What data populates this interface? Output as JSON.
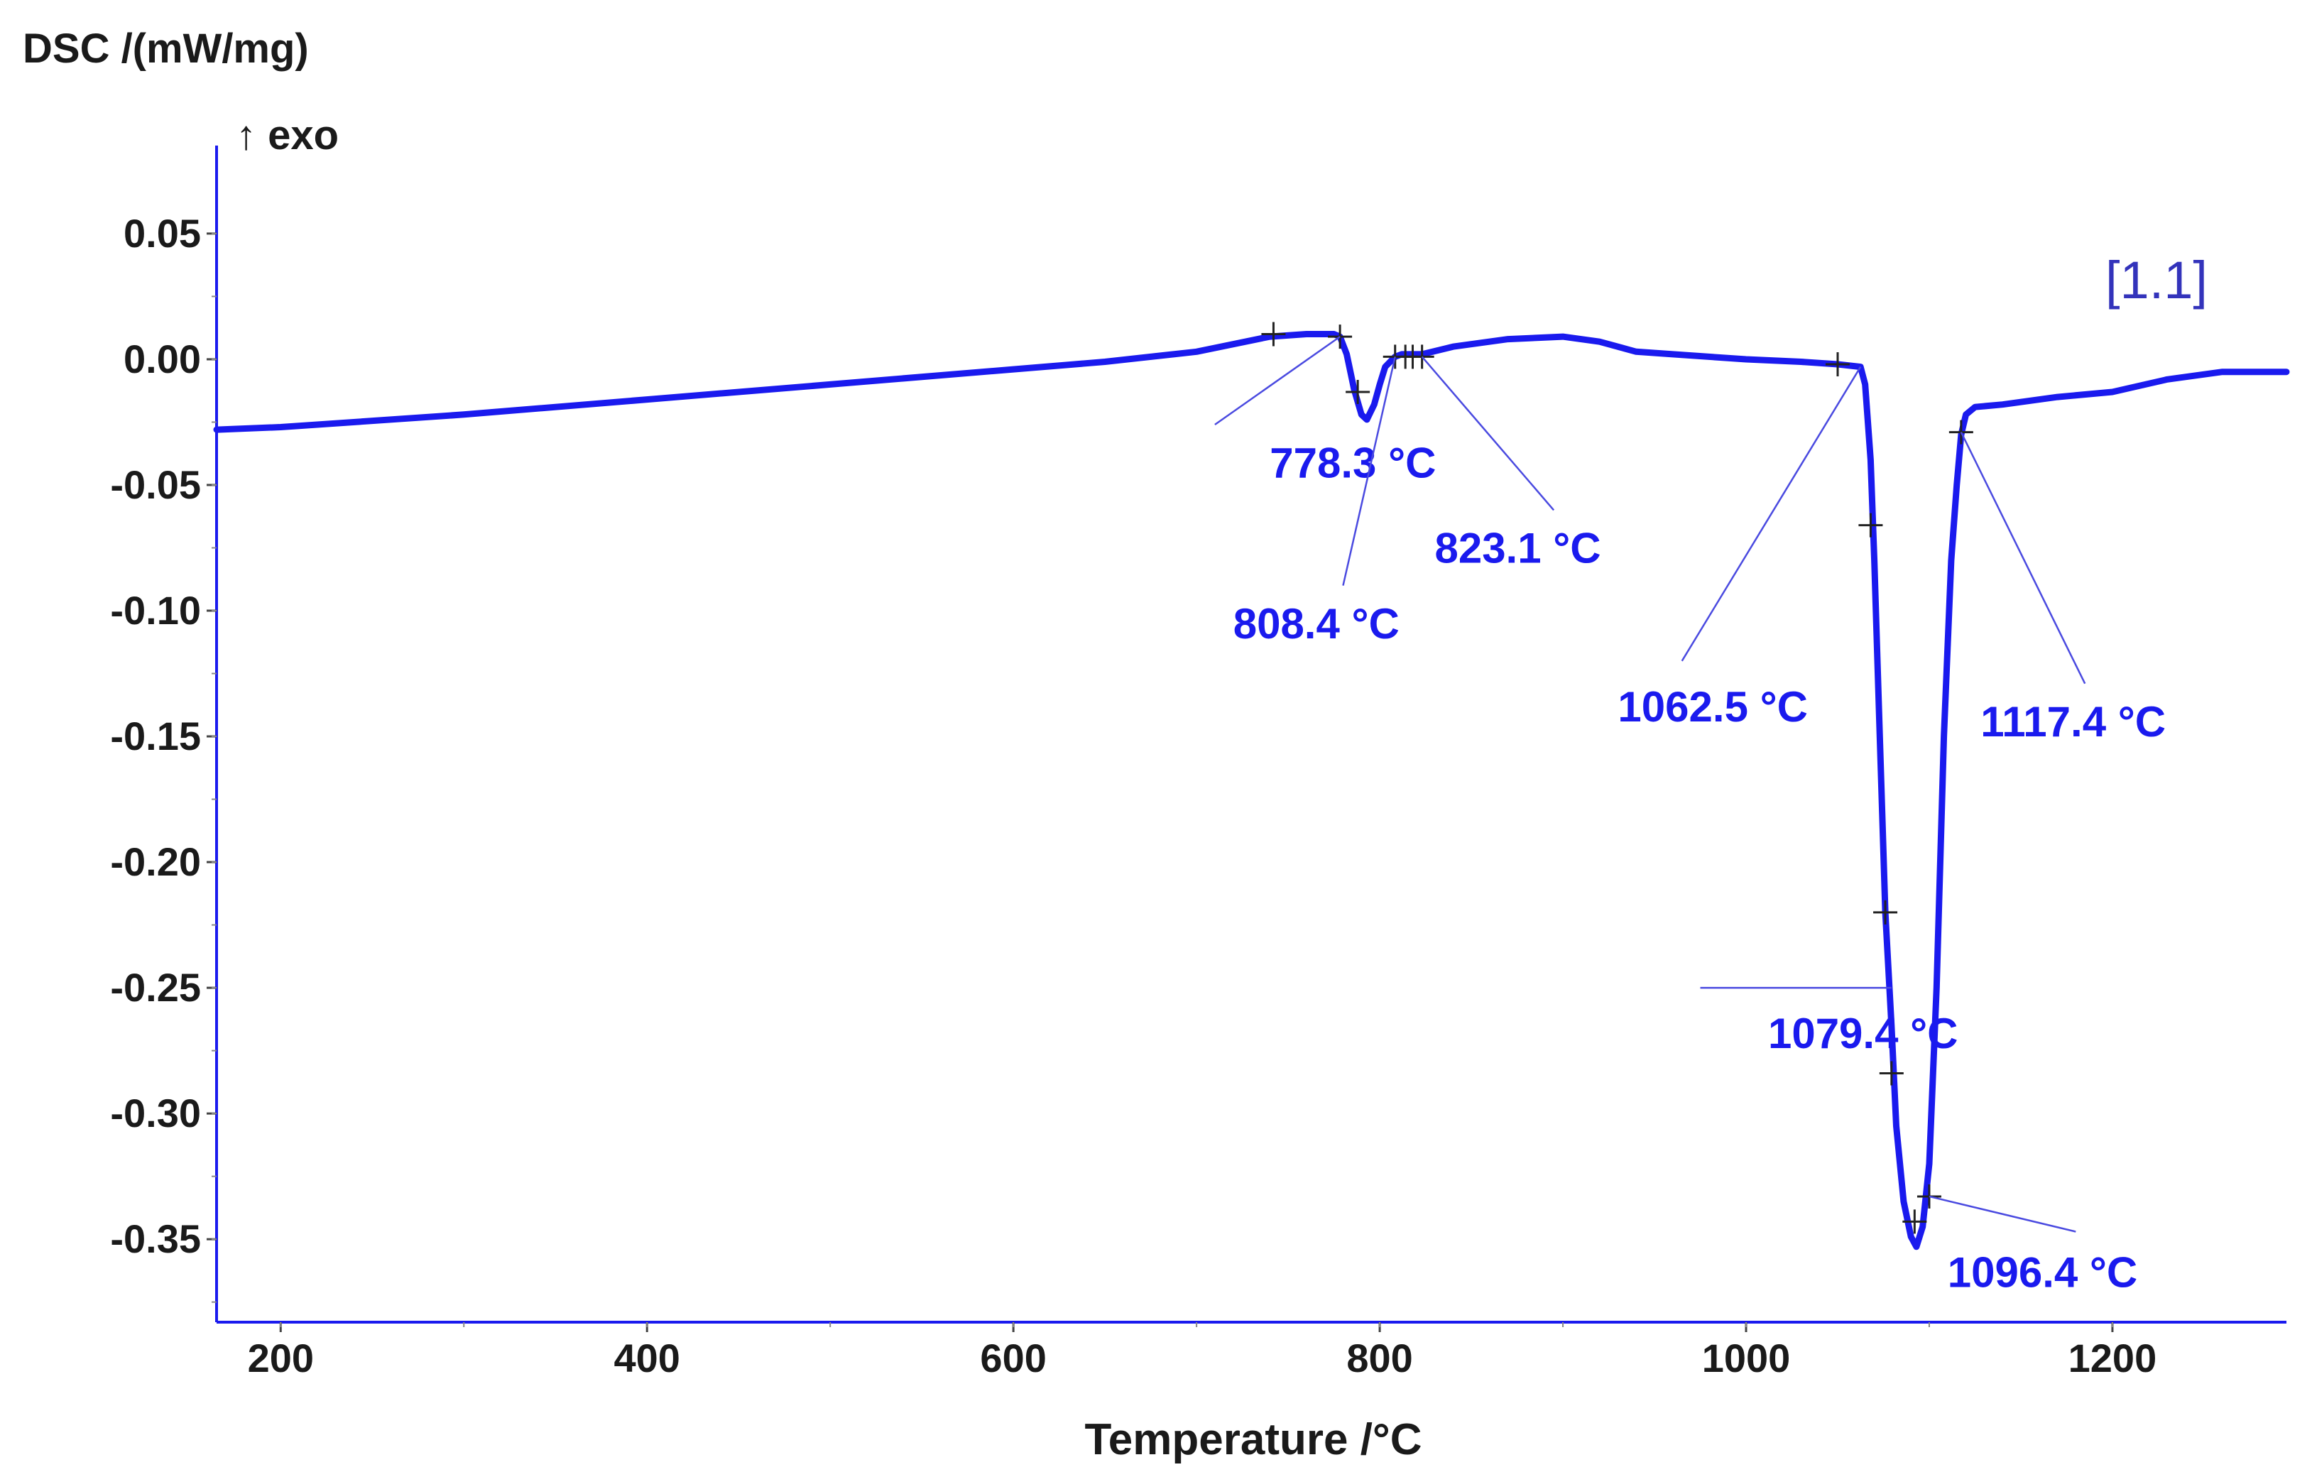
{
  "chart_data": {
    "type": "line",
    "ylabel": "DSC /(mW/mg)",
    "y_direction_label": "↑ exo",
    "xlabel": "Temperature /°C",
    "tag": "[1.1]",
    "xlim": [
      165,
      1295
    ],
    "ylim": [
      -0.383,
      0.085
    ],
    "x_ticks": [
      200,
      400,
      600,
      800,
      1000,
      1200
    ],
    "x_tick_labels": [
      "200",
      "400",
      "600",
      "800",
      "1000",
      "1200"
    ],
    "y_ticks": [
      0.05,
      0.0,
      -0.05,
      -0.1,
      -0.15,
      -0.2,
      -0.25,
      -0.3,
      -0.35
    ],
    "y_tick_labels": [
      "0.05",
      "0.00",
      "-0.05",
      "-0.10",
      "-0.15",
      "-0.20",
      "-0.25",
      "-0.30",
      "-0.35"
    ],
    "grid": false,
    "line_color": "#1a1aee",
    "series": [
      {
        "x": [
          165,
          200,
          300,
          400,
          500,
          600,
          650,
          700,
          740,
          760,
          775,
          778.3,
          782,
          786,
          790,
          793,
          797,
          800,
          803,
          808.4,
          812,
          818,
          823.1,
          840,
          870,
          900,
          920,
          940,
          960,
          1000,
          1030,
          1050,
          1062.5,
          1065,
          1068,
          1070,
          1073,
          1076,
          1079.4,
          1082,
          1086,
          1090,
          1093,
          1096.4,
          1100,
          1104,
          1108,
          1112,
          1115,
          1117.4,
          1120,
          1125,
          1140,
          1170,
          1200,
          1230,
          1260,
          1295
        ],
        "y": [
          -0.028,
          -0.027,
          -0.022,
          -0.016,
          -0.01,
          -0.004,
          -0.001,
          0.003,
          0.009,
          0.01,
          0.01,
          0.009,
          0.002,
          -0.012,
          -0.022,
          -0.024,
          -0.018,
          -0.01,
          -0.003,
          0.001,
          0.002,
          0.002,
          0.002,
          0.005,
          0.008,
          0.009,
          0.007,
          0.003,
          0.002,
          0.0,
          -0.001,
          -0.002,
          -0.003,
          -0.01,
          -0.04,
          -0.08,
          -0.15,
          -0.22,
          -0.265,
          -0.305,
          -0.335,
          -0.349,
          -0.353,
          -0.345,
          -0.32,
          -0.25,
          -0.15,
          -0.08,
          -0.05,
          -0.03,
          -0.022,
          -0.019,
          -0.018,
          -0.015,
          -0.013,
          -0.008,
          -0.005,
          -0.005
        ]
      }
    ],
    "markers": [
      {
        "x": 742,
        "y": 0.01
      },
      {
        "x": 778.3,
        "y": 0.009
      },
      {
        "x": 788,
        "y": -0.013
      },
      {
        "x": 808.4,
        "y": 0.001
      },
      {
        "x": 814,
        "y": 0.001
      },
      {
        "x": 818,
        "y": 0.001
      },
      {
        "x": 823.1,
        "y": 0.001
      },
      {
        "x": 1050,
        "y": -0.002
      },
      {
        "x": 1068,
        "y": -0.066
      },
      {
        "x": 1076,
        "y": -0.22
      },
      {
        "x": 1079.4,
        "y": -0.284
      },
      {
        "x": 1092,
        "y": -0.343
      },
      {
        "x": 1100,
        "y": -0.333
      },
      {
        "x": 1117.4,
        "y": -0.029
      }
    ],
    "annotations": [
      {
        "label": "778.3 °C",
        "point": [
          778.3,
          0.009
        ],
        "anchor": [
          710,
          -0.026
        ],
        "text_at": [
          740,
          -0.047
        ]
      },
      {
        "label": "808.4 °C",
        "point": [
          808.4,
          0.001
        ],
        "anchor": [
          780,
          -0.09
        ],
        "text_at": [
          720,
          -0.111
        ]
      },
      {
        "label": "823.1 °C",
        "point": [
          823.1,
          0.001
        ],
        "anchor": [
          895,
          -0.06
        ],
        "text_at": [
          830,
          -0.081
        ]
      },
      {
        "label": "1062.5 °C",
        "point": [
          1062.5,
          -0.003
        ],
        "anchor": [
          965,
          -0.12
        ],
        "text_at": [
          930,
          -0.144
        ]
      },
      {
        "label": "1117.4 °C",
        "point": [
          1117.4,
          -0.029
        ],
        "anchor": [
          1185,
          -0.129
        ],
        "text_at": [
          1128,
          -0.15
        ]
      },
      {
        "label": "1079.4 °C",
        "point": [
          1079.4,
          -0.25
        ],
        "anchor": [
          975,
          -0.25
        ],
        "text_at": [
          1012,
          -0.274
        ]
      },
      {
        "label": "1096.4 °C",
        "point": [
          1100,
          -0.333
        ],
        "anchor": [
          1180,
          -0.347
        ],
        "text_at": [
          1110,
          -0.369
        ]
      }
    ]
  }
}
